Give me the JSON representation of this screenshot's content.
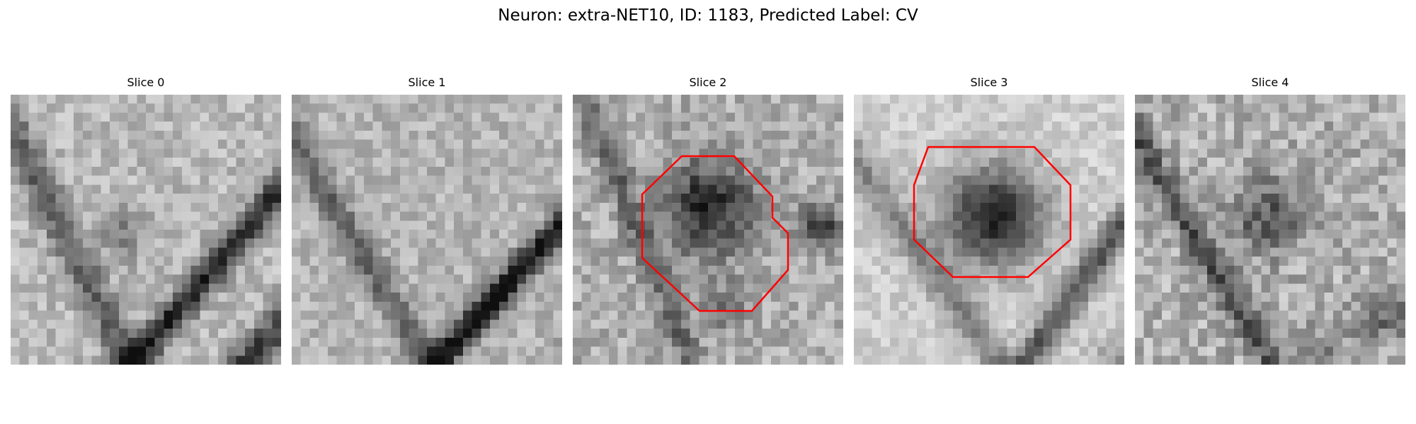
{
  "figure": {
    "title": "Neuron: extra-NET10, ID: 1183, Predicted Label: CV",
    "outline_color": "#ff0000",
    "panels": [
      {
        "title": "Slice 0",
        "image": "grayscale microscopy patch, diagonal dark membrane bands",
        "has_outline": false
      },
      {
        "title": "Slice 1",
        "image": "grayscale microscopy patch, diagonal dark membrane band",
        "has_outline": false
      },
      {
        "title": "Slice 2",
        "image": "grayscale microscopy patch, dark round vesicle centered",
        "has_outline": true
      },
      {
        "title": "Slice 3",
        "image": "grayscale microscopy patch, large dark round vesicle centered",
        "has_outline": true
      },
      {
        "title": "Slice 4",
        "image": "grayscale microscopy patch, faint dark blob, noisy texture",
        "has_outline": false
      }
    ]
  }
}
